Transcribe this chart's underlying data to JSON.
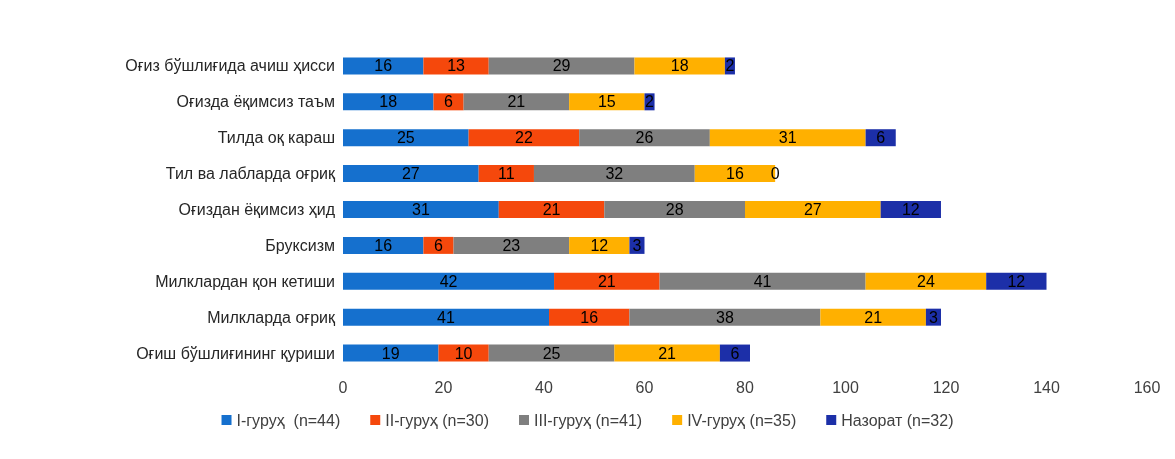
{
  "chart_data": {
    "type": "bar",
    "orientation": "horizontal",
    "stacked": true,
    "data_labels": true,
    "grid": false,
    "legend": "bottom",
    "categories": [
      "Оғиз бўшлиғида ачиш ҳисси",
      "Оғизда ёқимсиз таъм",
      "Тилда оқ караш",
      "Тил ва лабларда оғриқ",
      "Оғиздан ёқимсиз ҳид",
      "Бруксизм",
      "Милклардан қон кетиши",
      "Милкларда оғриқ",
      "Оғиш бўшлиғининг қуриши"
    ],
    "xlim": [
      0,
      160
    ],
    "xticks": [
      0,
      20,
      40,
      60,
      80,
      100,
      120,
      140,
      160
    ],
    "series": [
      {
        "name": "I-гуруҳ  (n=44)",
        "color": "#1570ce",
        "values": [
          16,
          18,
          25,
          27,
          31,
          16,
          42,
          41,
          19
        ]
      },
      {
        "name": "II-гуруҳ (n=30)",
        "color": "#f5480c",
        "values": [
          13,
          6,
          22,
          11,
          21,
          6,
          21,
          16,
          10
        ]
      },
      {
        "name": "III-гуруҳ (n=41)",
        "color": "#7f7f7f",
        "values": [
          29,
          21,
          26,
          32,
          28,
          23,
          41,
          38,
          25
        ]
      },
      {
        "name": "IV-гуруҳ (n=35)",
        "color": "#ffb000",
        "values": [
          18,
          15,
          31,
          16,
          27,
          12,
          24,
          21,
          21
        ]
      },
      {
        "name": "Назорат (n=32)",
        "color": "#1c2fa8",
        "values": [
          2,
          2,
          6,
          0,
          12,
          3,
          12,
          3,
          6
        ]
      }
    ]
  }
}
